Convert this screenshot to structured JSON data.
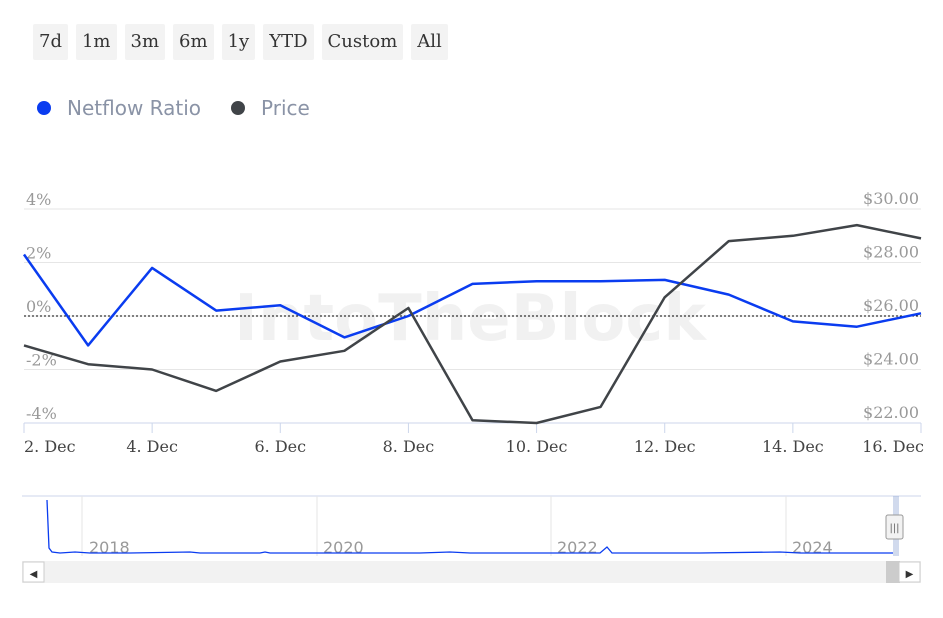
{
  "range_selector": [
    "7d",
    "1m",
    "3m",
    "6m",
    "1y",
    "YTD",
    "Custom",
    "All"
  ],
  "legend": [
    {
      "label": "Netflow Ratio",
      "color": "#0a3cf0"
    },
    {
      "label": "Price",
      "color": "#404448"
    }
  ],
  "watermark": "IntoTheBlock",
  "colors": {
    "netflow": "#0a3cf0",
    "price": "#404448",
    "grid": "#e6e6e6"
  },
  "chart_data": {
    "type": "line",
    "x": [
      "2. Dec",
      "3. Dec",
      "4. Dec",
      "5. Dec",
      "6. Dec",
      "7. Dec",
      "8. Dec",
      "9. Dec",
      "10. Dec",
      "11. Dec",
      "12. Dec",
      "13. Dec",
      "14. Dec",
      "15. Dec",
      "16. Dec"
    ],
    "x_tick_labels": [
      "2. Dec",
      "4. Dec",
      "6. Dec",
      "8. Dec",
      "10. Dec",
      "12. Dec",
      "14. Dec",
      "16. Dec"
    ],
    "y_left": {
      "ticks": [
        "4%",
        "2%",
        "0%",
        "-2%",
        "-4%"
      ],
      "range": [
        -4,
        4
      ],
      "unit": "%"
    },
    "y_right": {
      "ticks": [
        "$30.00",
        "$28.00",
        "$26.00",
        "$24.00",
        "$22.00"
      ],
      "range": [
        22,
        30
      ]
    },
    "series": [
      {
        "name": "Netflow Ratio",
        "axis": "left",
        "values": [
          2.3,
          -1.1,
          1.8,
          0.2,
          0.4,
          -0.8,
          0.0,
          1.2,
          1.3,
          1.3,
          1.35,
          0.8,
          -0.2,
          -0.4,
          0.1
        ]
      },
      {
        "name": "Price",
        "axis": "right",
        "values": [
          24.9,
          24.2,
          24.0,
          23.2,
          24.3,
          24.7,
          26.3,
          22.1,
          22.0,
          22.6,
          26.7,
          28.8,
          29.0,
          29.4,
          28.9
        ]
      }
    ],
    "zero_line": true,
    "grid": true,
    "legend_position": "top-left"
  },
  "navigator": {
    "year_labels": [
      "2018",
      "2020",
      "2022",
      "2024"
    ],
    "scroll_left": "◀",
    "scroll_right": "▶",
    "handle": "|||"
  }
}
